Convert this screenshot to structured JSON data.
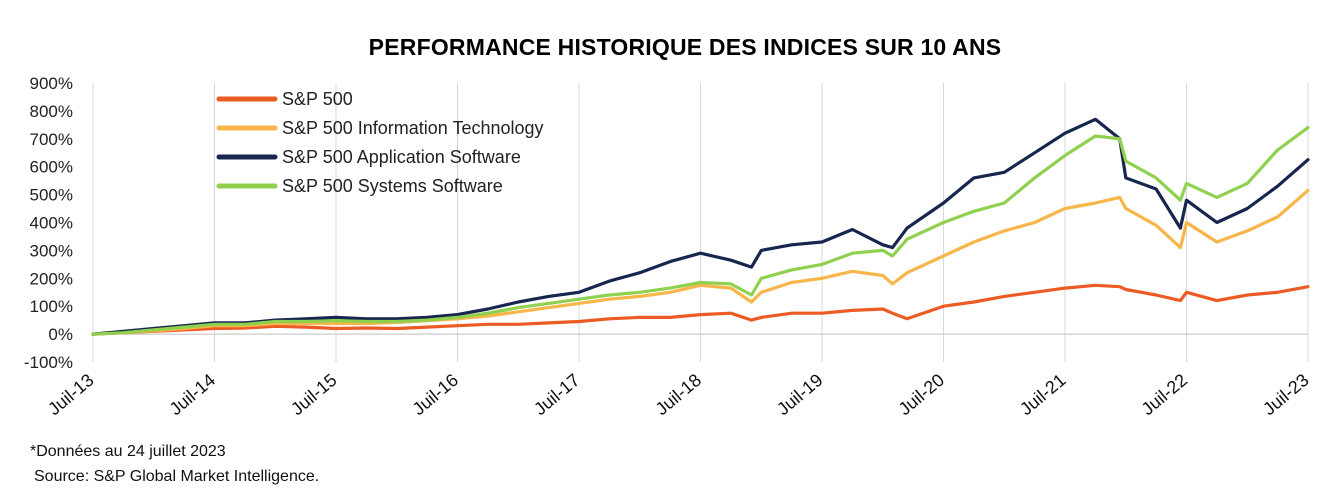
{
  "chart_data": {
    "type": "line",
    "title": "PERFORMANCE HISTORIQUE DES INDICES SUR 10 ANS",
    "xlabel": "",
    "ylabel": "",
    "ylim": [
      -100,
      900
    ],
    "y_ticks": [
      -100,
      0,
      100,
      200,
      300,
      400,
      500,
      600,
      700,
      800,
      900
    ],
    "y_tick_labels": [
      "-100%",
      "0%",
      "100%",
      "200%",
      "300%",
      "400%",
      "500%",
      "600%",
      "700%",
      "800%",
      "900%"
    ],
    "x_range": [
      2013.5,
      2023.5
    ],
    "x_ticks": [
      2013.5,
      2014.5,
      2015.5,
      2016.5,
      2017.5,
      2018.5,
      2019.5,
      2020.5,
      2021.5,
      2022.5,
      2023.5
    ],
    "x_tick_labels": [
      "Juil-13",
      "Juil-14",
      "Juil-15",
      "Juil-16",
      "Juil-17",
      "Juil-18",
      "Juil-19",
      "Juil-20",
      "Juil-21",
      "Juil-22",
      "Juil-23"
    ],
    "grid": "vertical",
    "legend_position": "top-left",
    "x": [
      2013.5,
      2013.75,
      2014.0,
      2014.25,
      2014.5,
      2014.75,
      2015.0,
      2015.25,
      2015.5,
      2015.75,
      2016.0,
      2016.25,
      2016.5,
      2016.75,
      2017.0,
      2017.25,
      2017.5,
      2017.75,
      2018.0,
      2018.25,
      2018.5,
      2018.75,
      2018.92,
      2019.0,
      2019.25,
      2019.5,
      2019.75,
      2020.0,
      2020.08,
      2020.2,
      2020.5,
      2020.75,
      2021.0,
      2021.25,
      2021.5,
      2021.75,
      2021.95,
      2022.0,
      2022.25,
      2022.45,
      2022.5,
      2022.75,
      2023.0,
      2023.25,
      2023.5
    ],
    "series": [
      {
        "name": "S&P 500",
        "color": "#ec5b24",
        "values": [
          0,
          5,
          10,
          15,
          20,
          22,
          28,
          25,
          20,
          22,
          20,
          25,
          30,
          35,
          35,
          40,
          45,
          55,
          60,
          60,
          70,
          75,
          50,
          60,
          75,
          75,
          85,
          90,
          75,
          55,
          100,
          115,
          135,
          150,
          165,
          175,
          170,
          160,
          140,
          120,
          150,
          120,
          140,
          150,
          170
        ]
      },
      {
        "name": "S&P 500 Information Technology",
        "color": "#f7b54a",
        "values": [
          0,
          5,
          12,
          20,
          30,
          30,
          38,
          38,
          38,
          38,
          42,
          48,
          55,
          65,
          80,
          95,
          110,
          125,
          135,
          150,
          175,
          165,
          115,
          150,
          185,
          200,
          225,
          210,
          180,
          220,
          280,
          330,
          370,
          400,
          450,
          470,
          490,
          450,
          390,
          310,
          400,
          330,
          370,
          420,
          515
        ]
      },
      {
        "name": "S&P 500 Application Software",
        "color": "#17264f",
        "values": [
          0,
          10,
          20,
          30,
          40,
          40,
          50,
          55,
          60,
          55,
          55,
          60,
          70,
          90,
          115,
          135,
          150,
          190,
          220,
          260,
          290,
          265,
          240,
          300,
          320,
          330,
          375,
          320,
          310,
          380,
          470,
          560,
          580,
          650,
          720,
          770,
          700,
          560,
          520,
          380,
          480,
          400,
          450,
          530,
          625
        ]
      },
      {
        "name": "S&P 500 Systems Software",
        "color": "#8fd14f",
        "values": [
          0,
          5,
          15,
          25,
          35,
          35,
          45,
          45,
          48,
          45,
          45,
          50,
          60,
          75,
          95,
          110,
          125,
          140,
          150,
          165,
          185,
          180,
          140,
          200,
          230,
          250,
          290,
          300,
          280,
          340,
          400,
          440,
          470,
          560,
          640,
          710,
          700,
          620,
          560,
          480,
          540,
          490,
          540,
          660,
          740
        ]
      }
    ]
  },
  "footnotes": {
    "date_note": "*Données au 24 juillet 2023",
    "source": "Source: S&P Global Market Intelligence."
  }
}
